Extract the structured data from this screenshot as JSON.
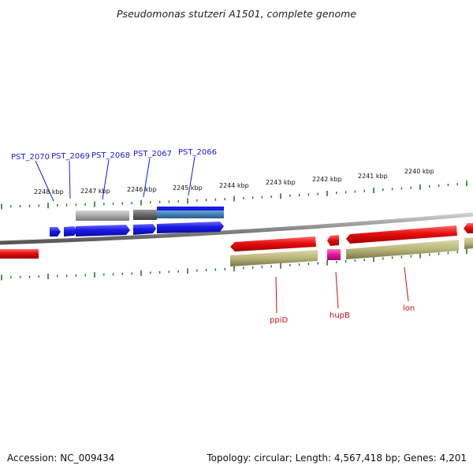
{
  "title": "Pseudomonas stutzeri A1501, complete genome",
  "footer": {
    "accession": "Accession: NC_009434",
    "topology": "Topology: circular; Length: 4,567,418 bp; Genes: 4,201"
  },
  "scale_labels": [
    "2248 kbp",
    "2247 kbp",
    "2246 kbp",
    "2245 kbp",
    "2244 kbp",
    "2243 kbp",
    "2242 kbp",
    "2241 kbp",
    "2240 kbp"
  ],
  "top_gene_labels": [
    "PST_2070",
    "PST_2069",
    "PST_2068",
    "PST_2067",
    "PST_2066"
  ],
  "bottom_gene_labels": [
    "ppiD",
    "hupB",
    "lon"
  ],
  "colors": {
    "forward_cds": "#1a1ae6",
    "reverse_cds": "#e60e0e",
    "tick": "#1e7a1e",
    "backbone": "#8a8a8a",
    "gray_feature": "#a8a8a8",
    "olive_feature": "#b8b47a",
    "magenta_feature": "#e0189a",
    "top_label": "#1a1adc",
    "bottom_label": "#cc1010"
  }
}
